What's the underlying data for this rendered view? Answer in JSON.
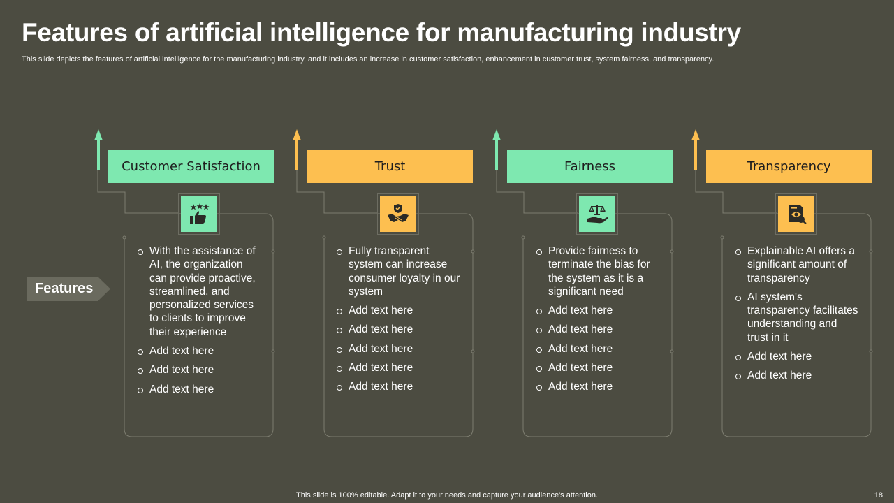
{
  "title": "Features of artificial intelligence for manufacturing industry",
  "subtitle": "This slide depicts the features of artificial intelligence for the manufacturing industry, and it includes an increase in customer satisfaction, enhancement in customer trust, system fairness, and transparency.",
  "features_label": "Features",
  "colors": {
    "green": "#7ee8b0",
    "orange": "#fdbf50",
    "background": "#4c4c41"
  },
  "columns": [
    {
      "header": "Customer Satisfaction",
      "icon": "thumbs-up-stars-icon",
      "accent": "green",
      "items": [
        "With the assistance of AI, the organization can provide proactive, streamlined, and personalized services to clients to improve their experience",
        "Add text here",
        "Add text here",
        "Add text here"
      ]
    },
    {
      "header": "Trust",
      "icon": "handshake-shield-icon",
      "accent": "orange",
      "items": [
        "Fully transparent system can increase consumer loyalty in our system",
        "Add text here",
        "Add text here",
        "Add text here",
        "Add text here",
        "Add text here"
      ]
    },
    {
      "header": "Fairness",
      "icon": "scales-hand-icon",
      "accent": "green",
      "items": [
        "Provide fairness to terminate the bias for the system as it is a significant need",
        "Add text here",
        "Add text here",
        "Add text here",
        "Add text here",
        "Add text here"
      ]
    },
    {
      "header": "Transparency",
      "icon": "document-eye-icon",
      "accent": "orange",
      "items": [
        "Explainable AI offers a significant amount of transparency",
        "AI system's transparency facilitates understanding and trust in it",
        "Add text here",
        "Add text here"
      ]
    }
  ],
  "footer": "This slide is 100% editable. Adapt it to your needs and capture your audience's attention.",
  "page_number": "18"
}
